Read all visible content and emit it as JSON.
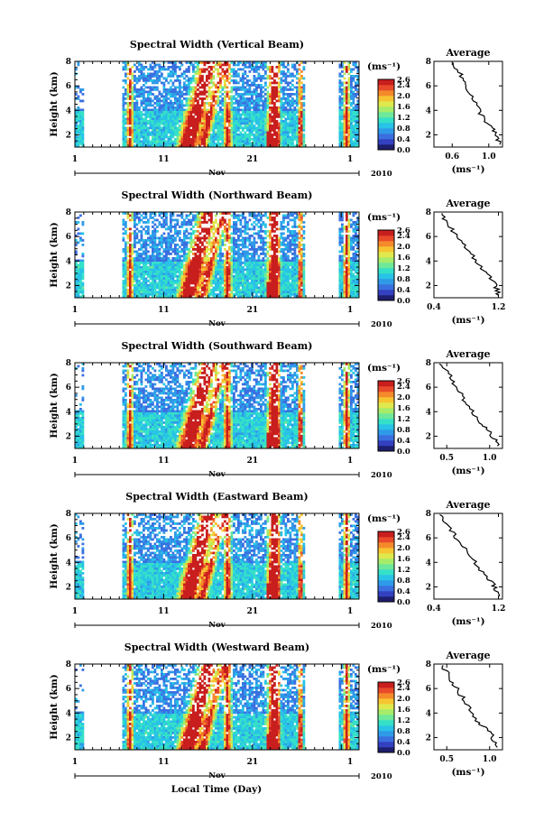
{
  "chart_data": [
    {
      "type": "heatmap",
      "title": "Spectral Width (Vertical Beam)",
      "ylabel": "Height (km)",
      "ylim": [
        1,
        8
      ],
      "yticks": [
        2,
        4,
        6,
        8
      ],
      "xlim": [
        1,
        33
      ],
      "xticks": [
        "1",
        "11",
        "21",
        "1"
      ],
      "xaxis_label": "Nov",
      "year": "2010",
      "colorbar": {
        "unit": "(ms⁻¹)",
        "range": [
          0,
          2.6
        ],
        "ticks": [
          "2.6",
          "2.4",
          "2.0",
          "1.6",
          "1.2",
          "0.8",
          "0.4",
          "0.0"
        ]
      },
      "profile": {
        "title": "Average",
        "xlabel": "(ms⁻¹)",
        "xticks": [
          "0.6",
          "1.0"
        ],
        "xlim": [
          0.4,
          1.15
        ],
        "x": [
          0.62,
          0.66,
          0.71,
          0.76,
          0.8,
          0.85,
          0.9,
          0.96,
          1.02,
          1.06,
          1.09,
          1.12
        ],
        "y": [
          7.9,
          7.3,
          6.6,
          6.0,
          5.3,
          4.6,
          3.9,
          3.2,
          2.7,
          2.2,
          1.7,
          1.2
        ]
      }
    },
    {
      "type": "heatmap",
      "title": "Spectral Width (Northward Beam)",
      "ylabel": "Height (km)",
      "ylim": [
        1,
        8
      ],
      "yticks": [
        2,
        4,
        6,
        8
      ],
      "xlim": [
        1,
        33
      ],
      "xticks": [
        "1",
        "11",
        "21",
        "1"
      ],
      "xaxis_label": "Nov",
      "year": "2010",
      "colorbar": {
        "unit": "(ms⁻¹)",
        "range": [
          0,
          2.6
        ],
        "ticks": [
          "2.6",
          "2.4",
          "2.0",
          "1.6",
          "1.2",
          "0.8",
          "0.4",
          "0.0"
        ]
      },
      "profile": {
        "title": "Average",
        "xlabel": "(ms⁻¹)",
        "xticks": [
          "0.4",
          "1.2"
        ],
        "xlim": [
          0.4,
          1.25
        ],
        "x": [
          0.48,
          0.55,
          0.62,
          0.7,
          0.78,
          0.86,
          0.94,
          1.02,
          1.1,
          1.15,
          1.18,
          1.2
        ],
        "y": [
          7.9,
          7.3,
          6.6,
          6.0,
          5.3,
          4.6,
          3.9,
          3.2,
          2.7,
          2.2,
          1.7,
          1.2
        ]
      }
    },
    {
      "type": "heatmap",
      "title": "Spectral Width (Southward Beam)",
      "ylabel": "Height (km)",
      "ylim": [
        1,
        8
      ],
      "yticks": [
        2,
        4,
        6,
        8
      ],
      "xlim": [
        1,
        33
      ],
      "xticks": [
        "1",
        "11",
        "21",
        "1"
      ],
      "xaxis_label": "Nov",
      "year": "2010",
      "colorbar": {
        "unit": "(ms⁻¹)",
        "range": [
          0,
          2.6
        ],
        "ticks": [
          "2.6",
          "2.4",
          "2.0",
          "1.6",
          "1.2",
          "0.8",
          "0.4",
          "0.0"
        ]
      },
      "profile": {
        "title": "Average",
        "xlabel": "(ms⁻¹)",
        "xticks": [
          "0.5",
          "1.0"
        ],
        "xlim": [
          0.35,
          1.15
        ],
        "x": [
          0.44,
          0.5,
          0.56,
          0.62,
          0.68,
          0.74,
          0.8,
          0.88,
          0.96,
          1.02,
          1.06,
          1.09
        ],
        "y": [
          7.9,
          7.3,
          6.6,
          6.0,
          5.3,
          4.6,
          3.9,
          3.2,
          2.7,
          2.2,
          1.7,
          1.2
        ]
      }
    },
    {
      "type": "heatmap",
      "title": "Spectral Width (Eastward Beam)",
      "ylabel": "Height (km)",
      "ylim": [
        1,
        8
      ],
      "yticks": [
        2,
        4,
        6,
        8
      ],
      "xlim": [
        1,
        33
      ],
      "xticks": [
        "1",
        "11",
        "21",
        "1"
      ],
      "xaxis_label": "Nov",
      "year": "2010",
      "colorbar": {
        "unit": "(ms⁻¹)",
        "range": [
          0,
          2.6
        ],
        "ticks": [
          "2.6",
          "2.4",
          "2.0",
          "1.6",
          "1.2",
          "0.8",
          "0.4",
          "0.0"
        ]
      },
      "profile": {
        "title": "Average",
        "xlabel": "(ms⁻¹)",
        "xticks": [
          "0.4",
          "1.2"
        ],
        "xlim": [
          0.4,
          1.25
        ],
        "x": [
          0.47,
          0.54,
          0.61,
          0.68,
          0.76,
          0.84,
          0.92,
          1.0,
          1.08,
          1.14,
          1.18,
          1.2
        ],
        "y": [
          7.9,
          7.3,
          6.6,
          6.0,
          5.3,
          4.6,
          3.9,
          3.2,
          2.7,
          2.2,
          1.7,
          1.2
        ]
      }
    },
    {
      "type": "heatmap",
      "title": "Spectral Width (Westward Beam)",
      "ylabel": "Height (km)",
      "ylim": [
        1,
        8
      ],
      "yticks": [
        2,
        4,
        6,
        8
      ],
      "xlim": [
        1,
        33
      ],
      "xticks": [
        "1",
        "11",
        "21",
        "1"
      ],
      "xaxis_label": "Nov",
      "year": "2010",
      "colorbar": {
        "unit": "(ms⁻¹)",
        "range": [
          0,
          2.6
        ],
        "ticks": [
          "2.6",
          "2.4",
          "2.0",
          "1.6",
          "1.2",
          "0.8",
          "0.4",
          "0.0"
        ]
      },
      "profile": {
        "title": "Average",
        "xlabel": "(ms⁻¹)",
        "xticks": [
          "0.5",
          "1.0"
        ],
        "xlim": [
          0.35,
          1.15
        ],
        "x": [
          0.44,
          0.5,
          0.56,
          0.62,
          0.68,
          0.74,
          0.8,
          0.88,
          0.96,
          1.02,
          1.06,
          1.09
        ],
        "y": [
          7.9,
          7.3,
          6.6,
          6.0,
          5.3,
          4.6,
          3.9,
          3.2,
          2.7,
          2.2,
          1.7,
          1.2
        ]
      }
    }
  ],
  "figure": {
    "xlabel": "Local Time (Day)"
  },
  "colormap": [
    "#1e1e6e",
    "#3340c0",
    "#3a6fe0",
    "#2f9ae8",
    "#28c3e6",
    "#35e0c8",
    "#6ee89a",
    "#a6ec6a",
    "#dfe84c",
    "#f7c431",
    "#f58a2a",
    "#e84a2a",
    "#c81e1e"
  ]
}
